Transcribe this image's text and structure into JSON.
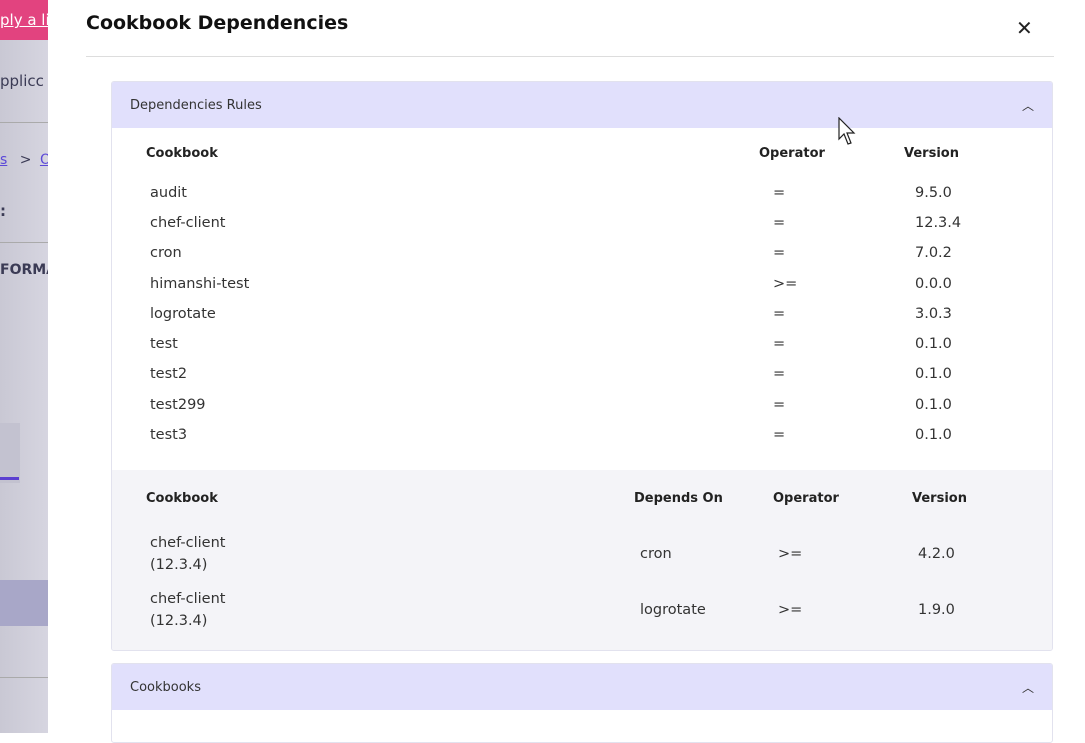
{
  "background": {
    "banner": "ply a lic",
    "app": "pplicc",
    "breadcrumb_a": "s",
    "breadcrumb_sep": ">",
    "breadcrumb_b": "Or",
    "heading": ":",
    "section": "FORMA"
  },
  "modal": {
    "title": "Cookbook Dependencies",
    "close_icon": "close-icon"
  },
  "rules_panel": {
    "title": "Dependencies Rules",
    "headers": [
      "Cookbook",
      "Operator",
      "Version"
    ],
    "rows": [
      [
        "audit",
        "=",
        "9.5.0"
      ],
      [
        "chef-client",
        "=",
        "12.3.4"
      ],
      [
        "cron",
        "=",
        "7.0.2"
      ],
      [
        "himanshi-test",
        ">=",
        "0.0.0"
      ],
      [
        "logrotate",
        "=",
        "3.0.3"
      ],
      [
        "test",
        "=",
        "0.1.0"
      ],
      [
        "test2",
        "=",
        "0.1.0"
      ],
      [
        "test299",
        "=",
        "0.1.0"
      ],
      [
        "test3",
        "=",
        "0.1.0"
      ]
    ],
    "dep_headers": [
      "Cookbook",
      "Depends On",
      "Operator",
      "Version"
    ],
    "dep_rows": [
      [
        "chef-client",
        "(12.3.4)",
        "cron",
        ">=",
        "4.2.0"
      ],
      [
        "chef-client",
        "(12.3.4)",
        "logrotate",
        ">=",
        "1.9.0"
      ]
    ]
  },
  "cookbooks_panel": {
    "title": "Cookbooks"
  },
  "colors": {
    "panel_header": "#e1e0fc",
    "banner": "#e2437f"
  }
}
